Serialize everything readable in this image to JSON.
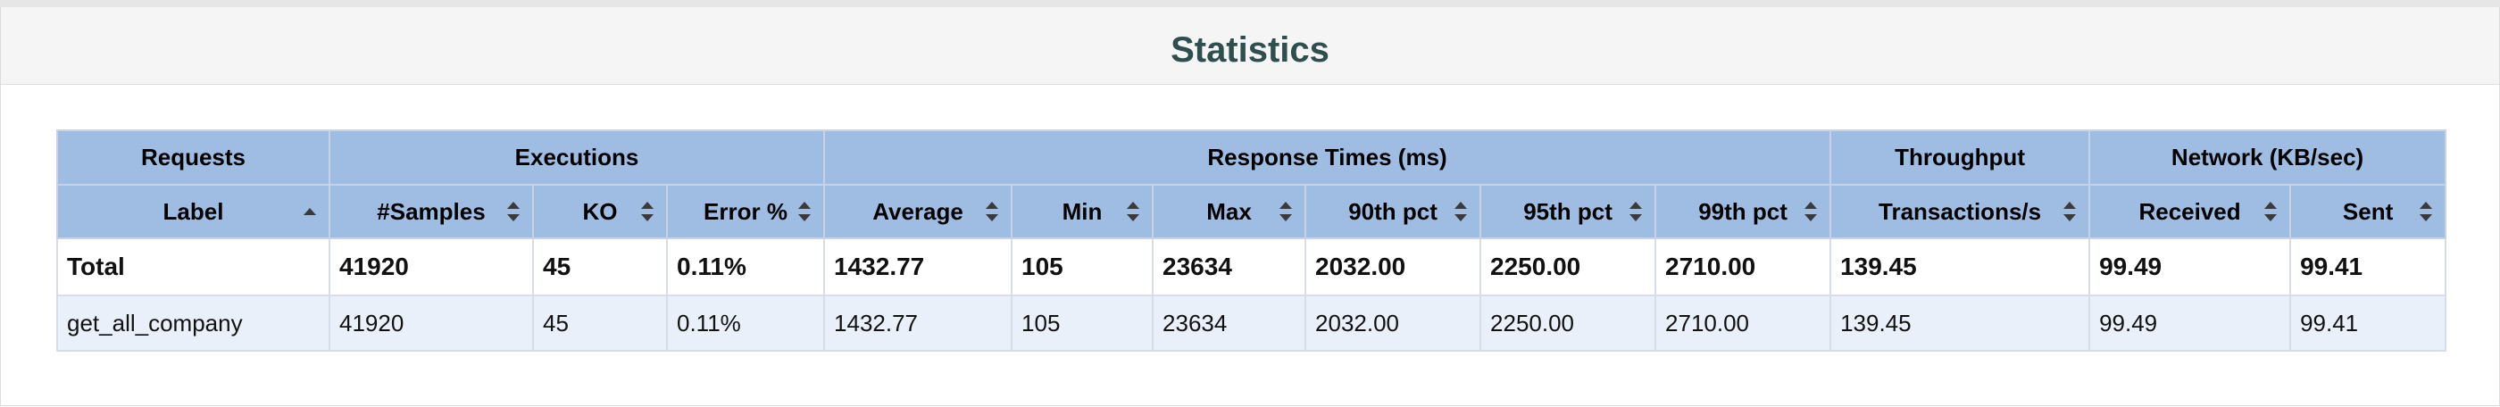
{
  "title": "Statistics",
  "groups": [
    {
      "label": "Requests"
    },
    {
      "label": "Executions"
    },
    {
      "label": "Response Times (ms)"
    },
    {
      "label": "Throughput"
    },
    {
      "label": "Network (KB/sec)"
    }
  ],
  "columns": [
    {
      "label": "Label"
    },
    {
      "label": "#Samples"
    },
    {
      "label": "KO"
    },
    {
      "label": "Error %"
    },
    {
      "label": "Average"
    },
    {
      "label": "Min"
    },
    {
      "label": "Max"
    },
    {
      "label": "90th pct"
    },
    {
      "label": "95th pct"
    },
    {
      "label": "99th pct"
    },
    {
      "label": "Transactions/s"
    },
    {
      "label": "Received"
    },
    {
      "label": "Sent"
    }
  ],
  "rows": [
    {
      "cells": [
        "Total",
        "41920",
        "45",
        "0.11%",
        "1432.77",
        "105",
        "23634",
        "2032.00",
        "2250.00",
        "2710.00",
        "139.45",
        "99.49",
        "99.41"
      ]
    },
    {
      "cells": [
        "get_all_company",
        "41920",
        "45",
        "0.11%",
        "1432.77",
        "105",
        "23634",
        "2032.00",
        "2250.00",
        "2710.00",
        "139.45",
        "99.49",
        "99.41"
      ]
    }
  ],
  "colors": {
    "header_bg": "#9fbde3",
    "row_alt_bg": "#e9f0fa",
    "title_color": "#2f4f4f"
  }
}
